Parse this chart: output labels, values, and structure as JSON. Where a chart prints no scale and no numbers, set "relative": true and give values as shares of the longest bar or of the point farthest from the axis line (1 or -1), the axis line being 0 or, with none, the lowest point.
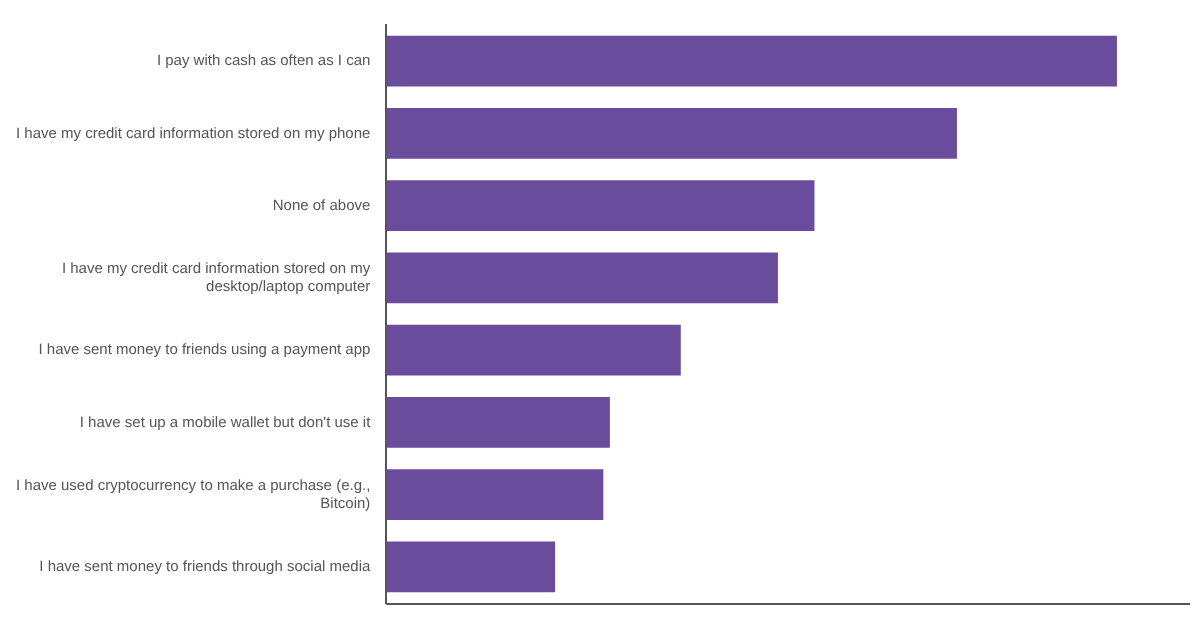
{
  "chart_data": {
    "type": "bar",
    "orientation": "horizontal",
    "relative": true,
    "grid": false,
    "legend": false,
    "categories": [
      "I pay with cash as often as I can",
      "I have my credit card information stored on my phone",
      "None of above",
      "I have my credit card information stored on my desktop/laptop computer",
      "I have sent money to friends using a payment app",
      "I have set up a mobile wallet but don't use it",
      "I have used cryptocurrency to make a purchase (e.g., Bitcoin)",
      "I have sent money to friends through social media"
    ],
    "series": [
      {
        "color": "#6a4c9c",
        "values": [
          1,
          0.781,
          0.586,
          0.536,
          0.403,
          0.306,
          0.297,
          0.231
        ]
      }
    ]
  }
}
